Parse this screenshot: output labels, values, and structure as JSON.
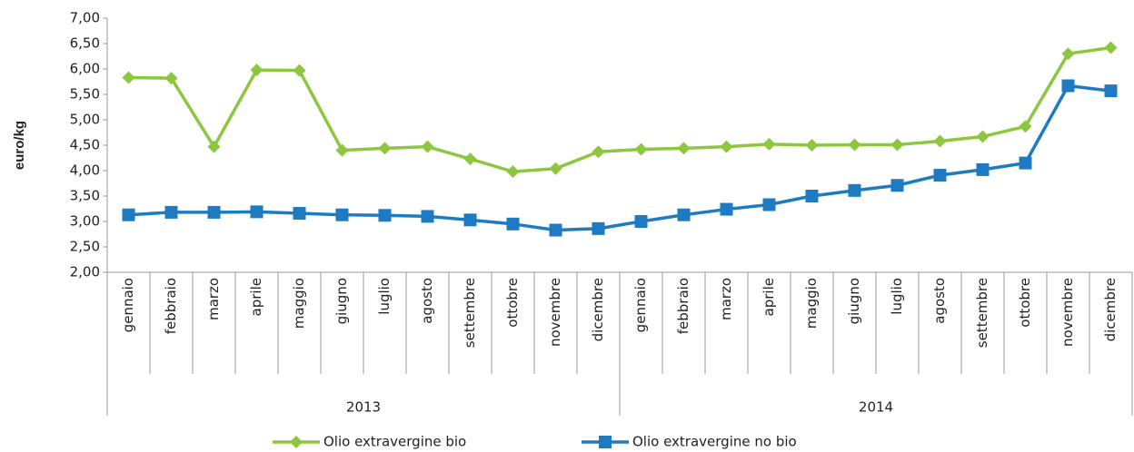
{
  "chart_data": {
    "type": "line",
    "y_label": "euro/kg",
    "groups": [
      {
        "label": "2013",
        "categories": [
          "gennaio",
          "febbraio",
          "marzo",
          "aprile",
          "maggio",
          "giugno",
          "luglio",
          "agosto",
          "settembre",
          "ottobre",
          "novembre",
          "dicembre"
        ]
      },
      {
        "label": "2014",
        "categories": [
          "gennaio",
          "febbraio",
          "marzo",
          "aprile",
          "maggio",
          "giugno",
          "luglio",
          "agosto",
          "settembre",
          "ottobre",
          "novembre",
          "dicembre"
        ]
      }
    ],
    "series": [
      {
        "name": "Olio extravergine bio",
        "color": "#8dc63f",
        "marker": "diamond",
        "values": [
          5.83,
          5.82,
          4.47,
          5.98,
          5.97,
          4.4,
          4.44,
          4.47,
          4.23,
          3.98,
          4.04,
          4.37,
          4.42,
          4.44,
          4.47,
          4.52,
          4.5,
          4.51,
          4.51,
          4.58,
          4.67,
          4.87,
          6.3,
          6.42
        ]
      },
      {
        "name": "Olio extravergine no bio",
        "color": "#1f7bc1",
        "marker": "square",
        "values": [
          3.13,
          3.18,
          3.18,
          3.19,
          3.16,
          3.13,
          3.12,
          3.1,
          3.03,
          2.95,
          2.83,
          2.86,
          3.0,
          3.13,
          3.24,
          3.33,
          3.5,
          3.61,
          3.71,
          3.91,
          4.02,
          4.15,
          5.67,
          5.57
        ]
      }
    ],
    "ylim": [
      2,
      7
    ],
    "yticks": [
      {
        "value": 2,
        "label": "2,00"
      },
      {
        "value": 2.5,
        "label": "2,50"
      },
      {
        "value": 3,
        "label": "3,00"
      },
      {
        "value": 3.5,
        "label": "3,50"
      },
      {
        "value": 4,
        "label": "4,00"
      },
      {
        "value": 4.5,
        "label": "4,50"
      },
      {
        "value": 5,
        "label": "5,00"
      },
      {
        "value": 5.5,
        "label": "5,50"
      },
      {
        "value": 6,
        "label": "6,00"
      },
      {
        "value": 6.5,
        "label": "6,50"
      },
      {
        "value": 7,
        "label": "7,00"
      }
    ],
    "grid": false,
    "legend": "bottom"
  }
}
